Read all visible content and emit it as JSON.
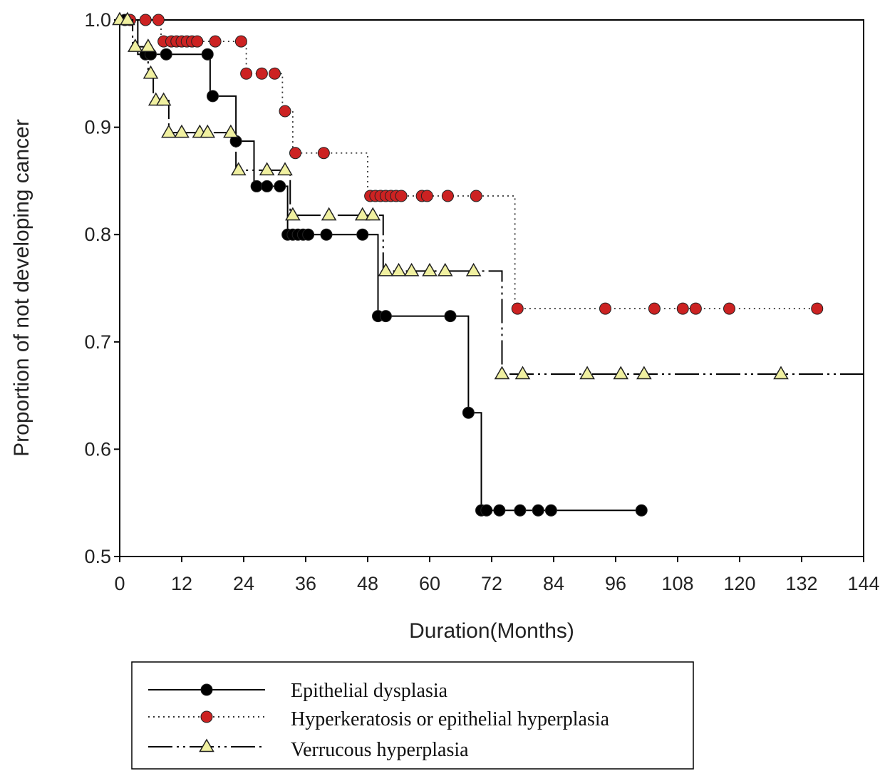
{
  "chart_data": {
    "type": "line",
    "subtype": "kaplan-meier step survival curves with censor markers",
    "xlabel": "Duration(Months)",
    "ylabel": "Proportion of not developing cancer",
    "xlim": [
      0,
      144
    ],
    "ylim": [
      0.5,
      1.0
    ],
    "x_ticks": [
      "0",
      "12",
      "24",
      "36",
      "48",
      "60",
      "72",
      "84",
      "96",
      "108",
      "120",
      "132",
      "144"
    ],
    "y_ticks": [
      "0.5",
      "0.6",
      "0.7",
      "0.8",
      "0.9",
      "1.0"
    ],
    "grid": false,
    "legend_position": "bottom",
    "series": [
      {
        "name": "Epithelial dysplasia",
        "line_style": "solid",
        "marker": "circle",
        "line_color": "#000000",
        "marker_color": "#000000",
        "steps": [
          [
            0,
            1.0
          ],
          [
            3.5,
            0.968
          ],
          [
            17.5,
            0.929
          ],
          [
            22.5,
            0.887
          ],
          [
            26,
            0.845
          ],
          [
            32.5,
            0.8
          ],
          [
            50,
            0.724
          ],
          [
            67.5,
            0.634
          ],
          [
            70,
            0.543
          ]
        ],
        "end_x": 101,
        "markers": [
          [
            1,
            1.0
          ],
          [
            5,
            0.968
          ],
          [
            6,
            0.968
          ],
          [
            9,
            0.968
          ],
          [
            17,
            0.968
          ],
          [
            18,
            0.929
          ],
          [
            22.5,
            0.887
          ],
          [
            26.5,
            0.845
          ],
          [
            28.5,
            0.845
          ],
          [
            31,
            0.845
          ],
          [
            32.5,
            0.8
          ],
          [
            33.5,
            0.8
          ],
          [
            34.5,
            0.8
          ],
          [
            35.5,
            0.8
          ],
          [
            36.5,
            0.8
          ],
          [
            40,
            0.8
          ],
          [
            47,
            0.8
          ],
          [
            50,
            0.724
          ],
          [
            51.5,
            0.724
          ],
          [
            64,
            0.724
          ],
          [
            67.5,
            0.634
          ],
          [
            70,
            0.543
          ],
          [
            71,
            0.543
          ],
          [
            73.5,
            0.543
          ],
          [
            77.5,
            0.543
          ],
          [
            81,
            0.543
          ],
          [
            83.5,
            0.543
          ],
          [
            101,
            0.543
          ]
        ]
      },
      {
        "name": "Hyperkeratosis or epithelial hyperplasia",
        "line_style": "dotted",
        "marker": "circle",
        "line_color": "#333333",
        "marker_color": "#cc2222",
        "steps": [
          [
            0,
            1.0
          ],
          [
            8,
            0.98
          ],
          [
            24.5,
            0.95
          ],
          [
            31.5,
            0.915
          ],
          [
            33.5,
            0.876
          ],
          [
            48,
            0.836
          ],
          [
            76.5,
            0.731
          ]
        ],
        "end_x": 135,
        "markers": [
          [
            2,
            1.0
          ],
          [
            5,
            1.0
          ],
          [
            7.5,
            1.0
          ],
          [
            8.5,
            0.98
          ],
          [
            10,
            0.98
          ],
          [
            11,
            0.98
          ],
          [
            12,
            0.98
          ],
          [
            13,
            0.98
          ],
          [
            14,
            0.98
          ],
          [
            15,
            0.98
          ],
          [
            18.5,
            0.98
          ],
          [
            23.5,
            0.98
          ],
          [
            24.5,
            0.95
          ],
          [
            27.5,
            0.95
          ],
          [
            30,
            0.95
          ],
          [
            32,
            0.915
          ],
          [
            34,
            0.876
          ],
          [
            39.5,
            0.876
          ],
          [
            48.5,
            0.836
          ],
          [
            49.5,
            0.836
          ],
          [
            50.5,
            0.836
          ],
          [
            51.5,
            0.836
          ],
          [
            52.5,
            0.836
          ],
          [
            53.5,
            0.836
          ],
          [
            54.5,
            0.836
          ],
          [
            58.5,
            0.836
          ],
          [
            59.5,
            0.836
          ],
          [
            63.5,
            0.836
          ],
          [
            69,
            0.836
          ],
          [
            77,
            0.731
          ],
          [
            94,
            0.731
          ],
          [
            103.5,
            0.731
          ],
          [
            109,
            0.731
          ],
          [
            111.5,
            0.731
          ],
          [
            118,
            0.731
          ],
          [
            135,
            0.731
          ]
        ]
      },
      {
        "name": "Verrucous hyperplasia",
        "line_style": "dash-dot-dot",
        "marker": "triangle",
        "line_color": "#000000",
        "marker_color": "#f0f0a0",
        "steps": [
          [
            0,
            1.0
          ],
          [
            2.5,
            0.975
          ],
          [
            5.5,
            0.95
          ],
          [
            6.5,
            0.925
          ],
          [
            9.5,
            0.895
          ],
          [
            22.5,
            0.86
          ],
          [
            33,
            0.818
          ],
          [
            51,
            0.766
          ],
          [
            74,
            0.67
          ]
        ],
        "end_x": 144,
        "markers": [
          [
            0,
            1.0
          ],
          [
            1.5,
            1.0
          ],
          [
            3,
            0.975
          ],
          [
            5.5,
            0.975
          ],
          [
            6,
            0.95
          ],
          [
            7,
            0.925
          ],
          [
            8.5,
            0.925
          ],
          [
            9.5,
            0.895
          ],
          [
            12,
            0.895
          ],
          [
            15.5,
            0.895
          ],
          [
            17,
            0.895
          ],
          [
            21.5,
            0.895
          ],
          [
            23,
            0.86
          ],
          [
            28.5,
            0.86
          ],
          [
            32,
            0.86
          ],
          [
            33.5,
            0.818
          ],
          [
            40.5,
            0.818
          ],
          [
            47,
            0.818
          ],
          [
            49,
            0.818
          ],
          [
            51.5,
            0.766
          ],
          [
            54,
            0.766
          ],
          [
            56.5,
            0.766
          ],
          [
            60,
            0.766
          ],
          [
            63,
            0.766
          ],
          [
            68.5,
            0.766
          ],
          [
            74,
            0.67
          ],
          [
            78,
            0.67
          ],
          [
            90.5,
            0.67
          ],
          [
            97,
            0.67
          ],
          [
            101.5,
            0.67
          ],
          [
            128,
            0.67
          ]
        ]
      }
    ]
  }
}
